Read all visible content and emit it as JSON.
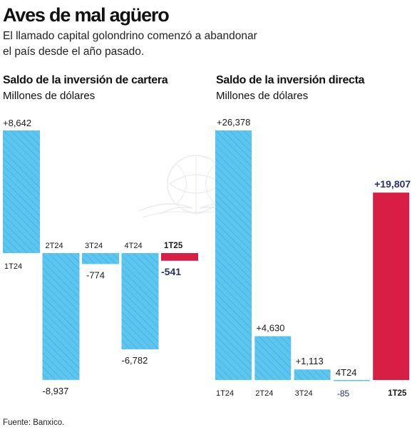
{
  "header": {
    "title": "Aves de mal agüero",
    "subtitle": "El llamado capital golondrino comenzó a abandonar el país desde el año pasado."
  },
  "colors": {
    "bar": "#5cc6f0",
    "highlight": "#d91e45",
    "hatch": "#3aa5d8",
    "label_highlight": "#2a2f6e"
  },
  "source": "Fuente: Banxico.",
  "chart_data": [
    {
      "type": "bar",
      "title": "Saldo de la inversión de cartera",
      "unit": "Millones de dólares",
      "categories": [
        "1T24",
        "2T24",
        "3T24",
        "4T24",
        "1T25"
      ],
      "values": [
        8642,
        -8937,
        -774,
        -6782,
        -541
      ],
      "value_labels": [
        "+8,642",
        "-8,937",
        "-774",
        "-6,782",
        "-541"
      ],
      "highlight": [
        false,
        false,
        false,
        false,
        true
      ]
    },
    {
      "type": "bar",
      "title": "Saldo de la inversión directa",
      "unit": "Millones de dólares",
      "categories": [
        "1T24",
        "2T24",
        "3T24",
        "4T24",
        "1T25"
      ],
      "values": [
        26378,
        4630,
        1113,
        -85,
        19807
      ],
      "value_labels": [
        "+26,378",
        "+4,630",
        "+1,113",
        "-85",
        "+19,807"
      ],
      "highlight": [
        false,
        false,
        false,
        false,
        true
      ]
    }
  ]
}
